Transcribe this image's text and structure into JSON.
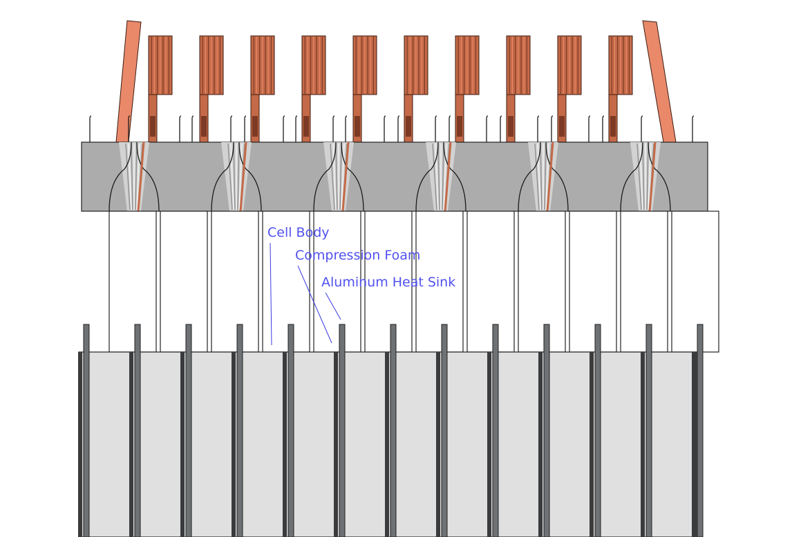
{
  "annotations": {
    "cell_body": "Cell Body",
    "compression_foam": "Compression Foam",
    "aluminum_heat_sink": "Aluminum Heat Sink"
  },
  "colors": {
    "annotation_text": "#5151f0",
    "leader_line": "#3a3ae0",
    "copper_light": "#e9896a",
    "copper_mid": "#c46a48",
    "copper_dark": "#7d3a24",
    "busbar_holder": "#acacac",
    "cell_body": "#ffffff",
    "heat_sink_fill": "#e0e0e0",
    "heat_sink_fin": "#6f7275",
    "foam_dark": "#3a3b3d"
  },
  "counts": {
    "busbar_tabs": 10,
    "cells": 12,
    "heat_sink_fins": 13,
    "holder_slots": 6
  }
}
